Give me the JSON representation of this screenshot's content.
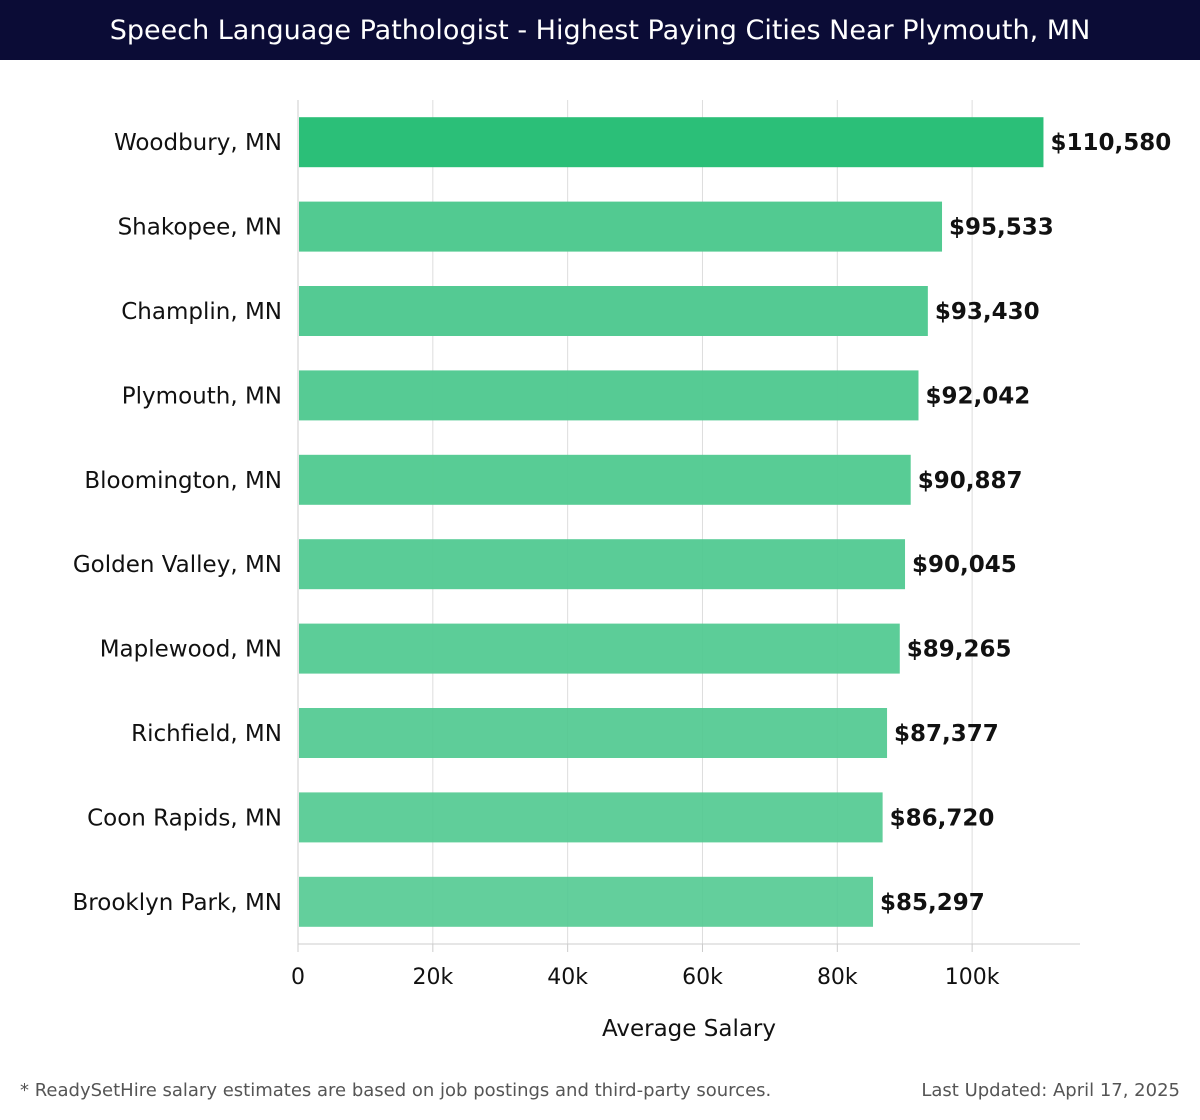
{
  "header": {
    "title": "Speech Language Pathologist - Highest Paying Cities Near Plymouth, MN"
  },
  "footer": {
    "note": "* ReadySetHire salary estimates are based on job postings and third-party sources.",
    "updated": "Last Updated: April 17, 2025"
  },
  "colors": {
    "header_bg": "#0b0c36",
    "bar_top": "#2bbf78",
    "bar_rest": "#50c990",
    "grid": "#dddddd",
    "axis": "#cccccc"
  },
  "chart_data": {
    "type": "bar",
    "orientation": "horizontal",
    "title": "Speech Language Pathologist - Highest Paying Cities Near Plymouth, MN",
    "xlabel": "Average Salary",
    "ylabel": "",
    "xlim": [
      0,
      116000
    ],
    "xticks": [
      0,
      20000,
      40000,
      60000,
      80000,
      100000
    ],
    "xtick_labels": [
      "0",
      "20k",
      "40k",
      "60k",
      "80k",
      "100k"
    ],
    "grid": true,
    "categories": [
      "Woodbury, MN",
      "Shakopee, MN",
      "Champlin, MN",
      "Plymouth, MN",
      "Bloomington, MN",
      "Golden Valley, MN",
      "Maplewood, MN",
      "Richfield, MN",
      "Coon Rapids, MN",
      "Brooklyn Park, MN"
    ],
    "values": [
      110580,
      95533,
      93430,
      92042,
      90887,
      90045,
      89265,
      87377,
      86720,
      85297
    ],
    "value_labels": [
      "$110,580",
      "$95,533",
      "$93,430",
      "$92,042",
      "$90,887",
      "$90,045",
      "$89,265",
      "$87,377",
      "$86,720",
      "$85,297"
    ]
  }
}
